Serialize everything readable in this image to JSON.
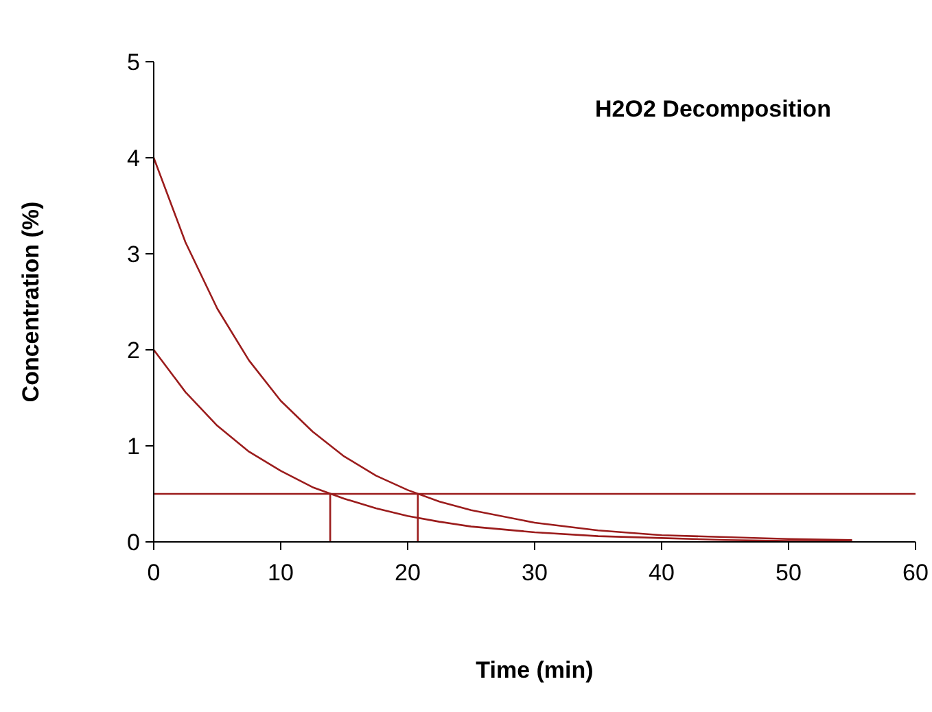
{
  "chart_data": {
    "type": "line",
    "title": "H2O2 Decomposition",
    "xlabel": "Time (min)",
    "ylabel": "Concentration (%)",
    "xlim": [
      0,
      60
    ],
    "xticks": [
      0,
      10,
      20,
      30,
      40,
      50,
      60
    ],
    "ylim": [
      0,
      5
    ],
    "yticks": [
      0,
      1,
      2,
      3,
      4,
      5
    ],
    "marker": "none",
    "line_style": "solid",
    "series": [
      {
        "color": "#9b1c1c",
        "x": [
          0,
          2.5,
          5,
          7.5,
          10,
          12.5,
          15,
          17.5,
          20,
          22.5,
          25,
          30,
          35,
          40,
          45,
          50,
          55
        ],
        "values": [
          4,
          3.12,
          2.43,
          1.89,
          1.47,
          1.15,
          0.89,
          0.69,
          0.54,
          0.42,
          0.33,
          0.2,
          0.12,
          0.07,
          0.05,
          0.03,
          0.02
        ]
      },
      {
        "color": "#9b1c1c",
        "x": [
          0,
          2.5,
          5,
          7.5,
          10,
          12.5,
          15,
          17.5,
          20,
          22.5,
          25,
          30,
          35,
          40,
          45,
          50,
          55
        ],
        "values": [
          2,
          1.56,
          1.21,
          0.94,
          0.74,
          0.57,
          0.45,
          0.35,
          0.27,
          0.21,
          0.16,
          0.1,
          0.06,
          0.04,
          0.02,
          0.01,
          0.01
        ]
      },
      {
        "color": "#9b1c1c",
        "x": [
          13.9,
          13.9
        ],
        "values": [
          0,
          0.5
        ]
      },
      {
        "color": "#9b1c1c",
        "x": [
          20.8,
          20.8
        ],
        "values": [
          0,
          0.5
        ]
      }
    ],
    "ref_lines": [
      {
        "axis": "y",
        "value": 0.5,
        "color": "#9b1c1c"
      }
    ]
  }
}
